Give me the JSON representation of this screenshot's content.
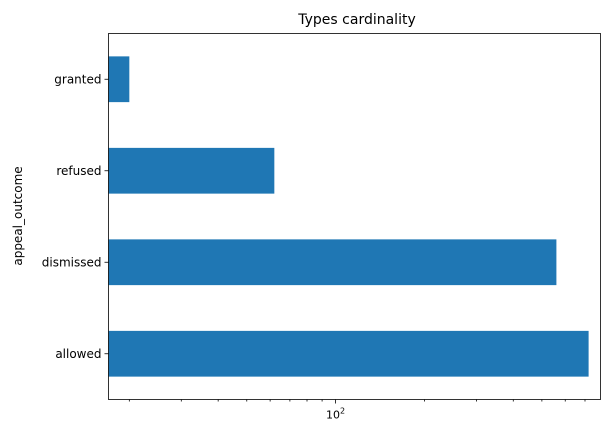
{
  "chart_data": {
    "type": "bar",
    "orientation": "horizontal",
    "title": "Types cardinality",
    "xlabel": "",
    "ylabel": "appeal_outcome",
    "x_scale": "log",
    "xlim": [
      17,
      790
    ],
    "categories": [
      "allowed",
      "dismissed",
      "refused",
      "granted"
    ],
    "values": [
      720,
      560,
      62,
      20
    ],
    "x_major_ticks": [
      100
    ],
    "x_major_tick_labels_base": [
      "10"
    ],
    "x_major_tick_labels_exp": [
      "2"
    ],
    "x_minor_ticks": [
      20,
      30,
      40,
      50,
      60,
      70,
      80,
      90,
      200,
      300,
      400,
      500,
      600,
      700
    ],
    "grid": false,
    "legend": "none",
    "bar_color": "#1f77b4"
  }
}
